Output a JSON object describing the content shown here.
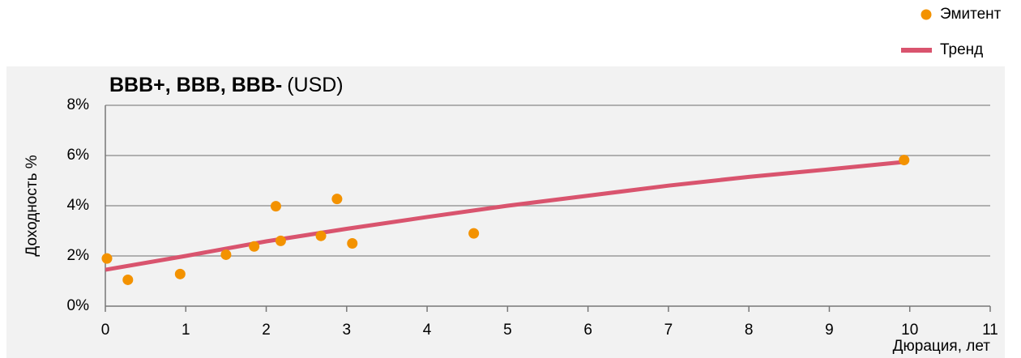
{
  "chart_data": {
    "type": "scatter",
    "title": "BBB+, BBB, BBB-",
    "subtitle": "(USD)",
    "x_label": "Дюрация, лет",
    "y_label": "Доходность %",
    "xlim": [
      0,
      11
    ],
    "xticks": [
      0,
      1,
      2,
      3,
      4,
      5,
      6,
      7,
      8,
      9,
      10,
      11
    ],
    "ylim": [
      0,
      8
    ],
    "yticks": [
      {
        "value": 0,
        "label": "0%"
      },
      {
        "value": 2,
        "label": "2%"
      },
      {
        "value": 4,
        "label": "4%"
      },
      {
        "value": 6,
        "label": "6%"
      },
      {
        "value": 8,
        "label": "8%"
      }
    ],
    "grid": true,
    "legend": "top-right",
    "series": [
      {
        "name": "Эмитент",
        "type": "scatter",
        "color": "#f39200",
        "x": [
          0.02,
          0.28,
          0.93,
          1.5,
          1.85,
          2.12,
          2.18,
          2.68,
          2.88,
          3.07,
          4.58,
          9.93
        ],
        "values": [
          1.9,
          1.05,
          1.28,
          2.05,
          2.38,
          3.98,
          2.6,
          2.8,
          4.27,
          2.5,
          2.9,
          5.82
        ]
      },
      {
        "name": "Тренд",
        "type": "line",
        "color": "#d9546e",
        "x": [
          0,
          1,
          2,
          3,
          4,
          5,
          6,
          7,
          8,
          9,
          9.95
        ],
        "values": [
          1.45,
          2.0,
          2.58,
          3.08,
          3.55,
          4.0,
          4.4,
          4.8,
          5.15,
          5.45,
          5.75
        ]
      }
    ]
  }
}
